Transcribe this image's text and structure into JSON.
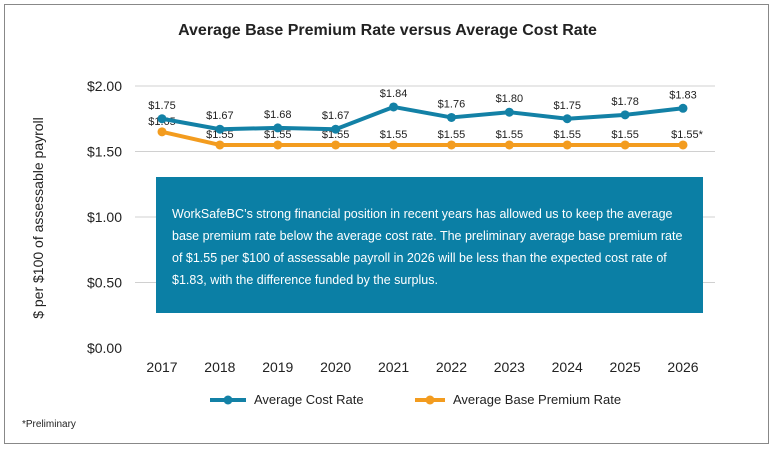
{
  "chart_data": {
    "type": "line",
    "title": "Average Base Premium Rate versus Average Cost Rate",
    "ylabel": "$ per $100 of assessable payroll",
    "xlabel": "",
    "categories": [
      "2017",
      "2018",
      "2019",
      "2020",
      "2021",
      "2022",
      "2023",
      "2024",
      "2025",
      "2026"
    ],
    "ylim": [
      0,
      2.0
    ],
    "yticks": [
      "$0.00",
      "$0.50",
      "$1.00",
      "$1.50",
      "$2.00"
    ],
    "grid": true,
    "legend": "bottom",
    "series": [
      {
        "name": "Average Cost Rate",
        "color": "#1381a6",
        "values": [
          1.75,
          1.67,
          1.68,
          1.67,
          1.84,
          1.76,
          1.8,
          1.75,
          1.78,
          1.83
        ],
        "labels": [
          "$1.75",
          "$1.67",
          "$1.68",
          "$1.67",
          "$1.84",
          "$1.76",
          "$1.80",
          "$1.75",
          "$1.78",
          "$1.83"
        ]
      },
      {
        "name": "Average Base Premium Rate",
        "color": "#f39c1f",
        "values": [
          1.65,
          1.55,
          1.55,
          1.55,
          1.55,
          1.55,
          1.55,
          1.55,
          1.55,
          1.55
        ],
        "labels": [
          "$1.65",
          "$1.55",
          "$1.55",
          "$1.55",
          "$1.55",
          "$1.55",
          "$1.55",
          "$1.55",
          "$1.55",
          "$1.55*"
        ]
      }
    ],
    "annotation": "WorkSafeBC’s strong financial position in recent years has allowed us to keep the average base premium rate below the average cost rate. The preliminary average base premium rate of $1.55 per $100 of assessable payroll in 2026 will be less than the expected cost rate of $1.83, with the difference funded by the surplus.",
    "annotation_color": "#0b7fa5",
    "footnote": "*Preliminary"
  }
}
